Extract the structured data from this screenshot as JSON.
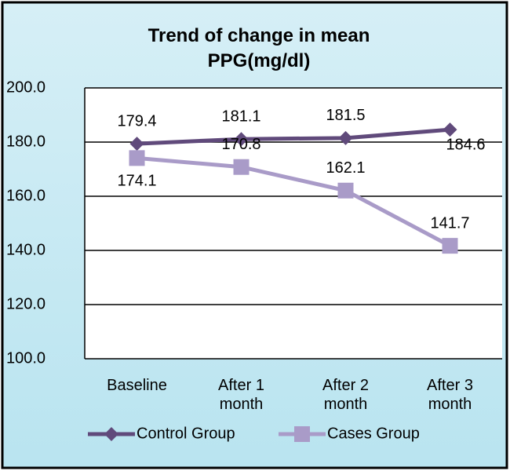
{
  "chart_data": {
    "type": "line",
    "title": "Trend of change in mean PPG(mg/dl)",
    "categories": [
      "Baseline",
      "After 1 month",
      "After 2 month",
      "After 3 month"
    ],
    "series": [
      {
        "name": "Control Group",
        "color": "#604a7b",
        "values": [
          179.4,
          181.1,
          181.5,
          184.6
        ]
      },
      {
        "name": "Cases Group",
        "color": "#a99bc8",
        "values": [
          174.1,
          170.8,
          162.1,
          141.7
        ]
      }
    ],
    "ylim": [
      100,
      200
    ],
    "yticks": [
      {
        "value": 100,
        "label": "100.0"
      },
      {
        "value": 120,
        "label": "120.0"
      },
      {
        "value": 140,
        "label": "140.0"
      },
      {
        "value": 160,
        "label": "160.0"
      },
      {
        "value": 180,
        "label": "180.0"
      },
      {
        "value": 200,
        "label": "200.0"
      }
    ],
    "grid": true
  }
}
